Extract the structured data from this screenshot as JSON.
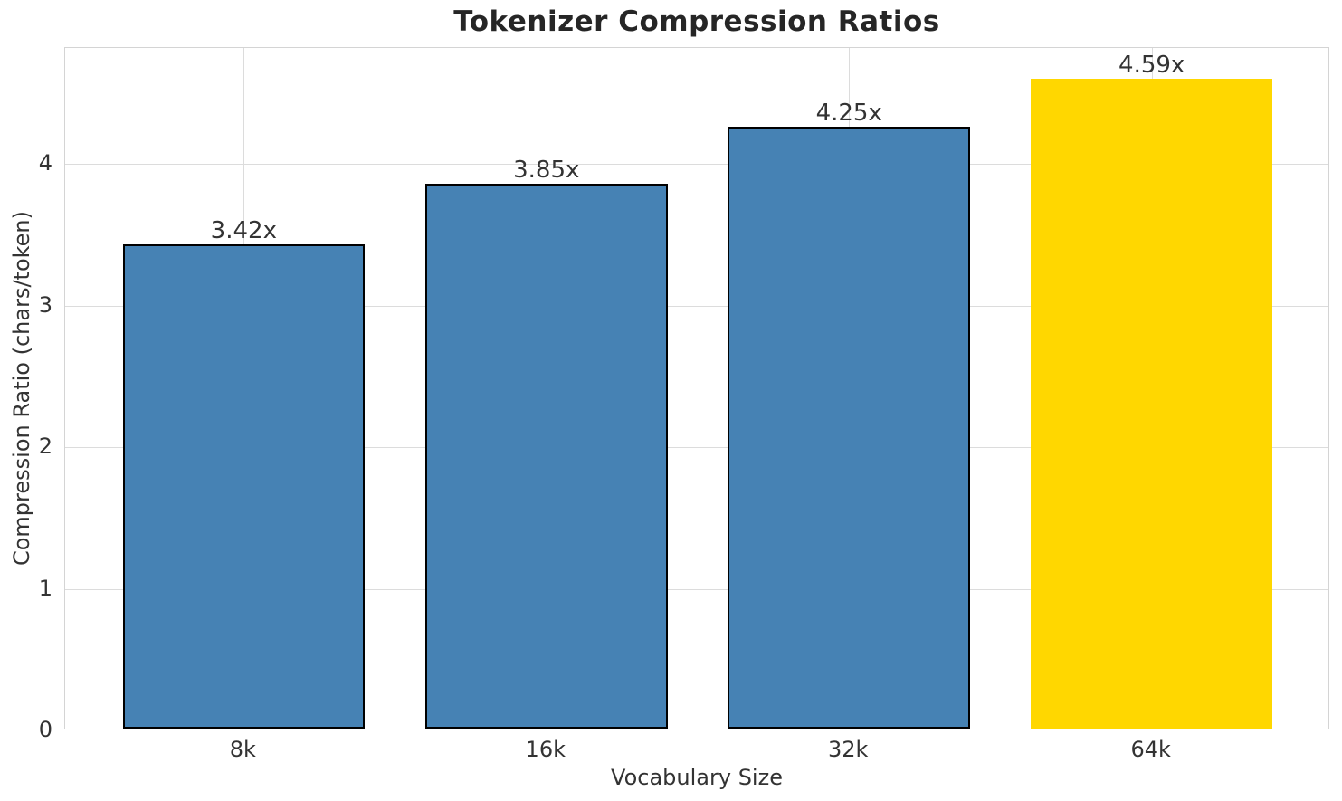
{
  "chart_data": {
    "type": "bar",
    "title": "Tokenizer Compression Ratios",
    "xlabel": "Vocabulary Size",
    "ylabel": "Compression Ratio (chars/token)",
    "categories": [
      "8k",
      "16k",
      "32k",
      "64k"
    ],
    "values": [
      3.42,
      3.85,
      4.25,
      4.59
    ],
    "bar_labels": [
      "3.42x",
      "3.85x",
      "4.25x",
      "4.59x"
    ],
    "bar_colors": [
      "#4682B4",
      "#4682B4",
      "#4682B4",
      "#FFD700"
    ],
    "bar_edge_colors": [
      "#000000",
      "#000000",
      "#000000",
      "none"
    ],
    "yticks": [
      0,
      1,
      2,
      3,
      4
    ],
    "ylim": [
      0,
      4.82
    ],
    "xlim": [
      -0.59,
      3.59
    ],
    "bar_width": 0.8,
    "grid": true,
    "legend_position": "none",
    "colors": {
      "bar_default": "#4682B4",
      "bar_highlight": "#FFD700",
      "bar_edge": "#000000",
      "grid": "#dcdcdc",
      "spine": "#d4d4d4",
      "tick_text": "#333333",
      "title_text": "#262626",
      "background": "#ffffff"
    }
  }
}
